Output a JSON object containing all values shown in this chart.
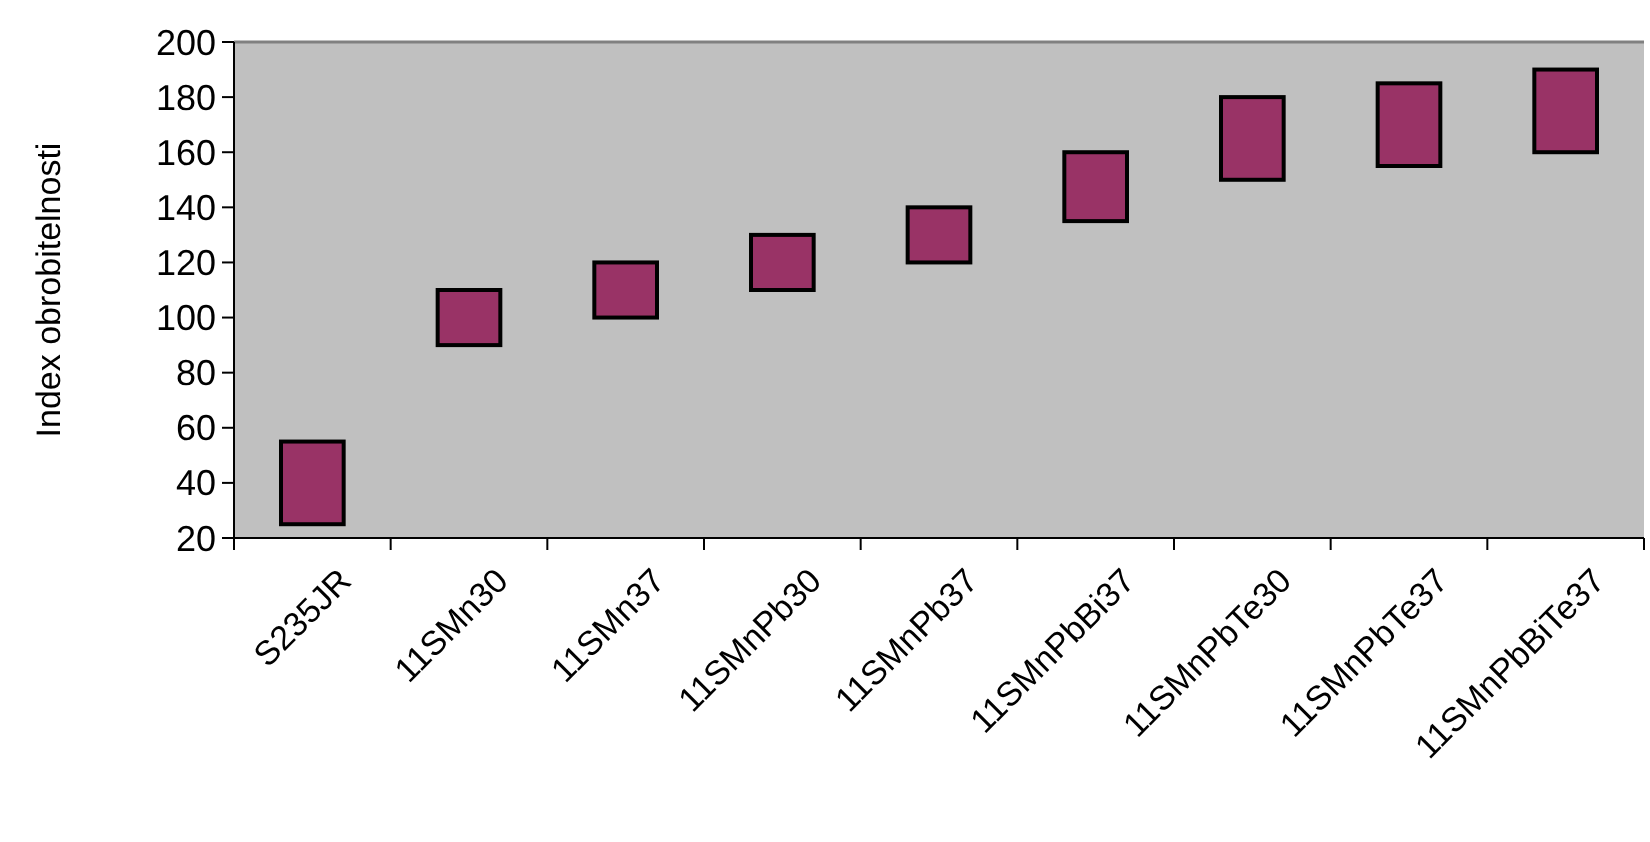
{
  "chart_data": {
    "type": "bar",
    "ylabel": "Index obrobitelnosti",
    "categories": [
      "S235JR",
      "11SMn30",
      "11SMn37",
      "11SMnPb30",
      "11SMnPb37",
      "11SMnPbBi37",
      "11SMnPbTe30",
      "11SMnPbTe37",
      "11SMnPbBiTe37"
    ],
    "base": [
      25,
      90,
      100,
      110,
      120,
      135,
      150,
      155,
      160
    ],
    "values": [
      30,
      20,
      20,
      20,
      20,
      25,
      30,
      30,
      30
    ],
    "color": "#993366",
    "ylim": [
      20,
      200
    ],
    "yticks": [
      20,
      40,
      60,
      80,
      100,
      120,
      140,
      160,
      180,
      200
    ],
    "grid": false
  }
}
